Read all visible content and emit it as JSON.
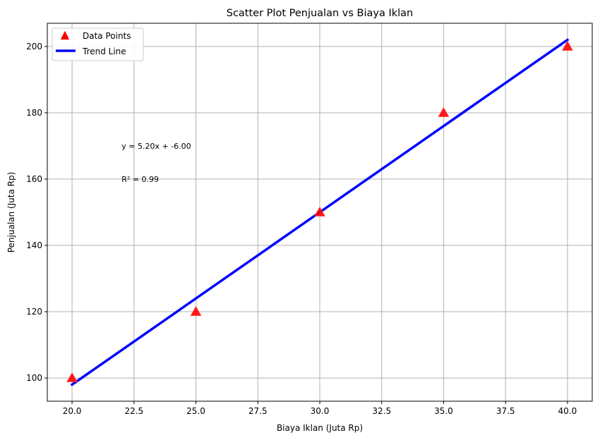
{
  "chart_data": {
    "type": "scatter",
    "title": "Scatter Plot Penjualan vs Biaya Iklan",
    "xlabel": "Biaya Iklan (Juta Rp)",
    "ylabel": "Penjualan (Juta Rp)",
    "xlim": [
      19.0,
      41.0
    ],
    "ylim": [
      93.0,
      207.0
    ],
    "x_ticks": [
      20.0,
      22.5,
      25.0,
      27.5,
      30.0,
      32.5,
      35.0,
      37.5,
      40.0
    ],
    "x_tick_labels": [
      "20.0",
      "22.5",
      "25.0",
      "27.5",
      "30.0",
      "32.5",
      "35.0",
      "37.5",
      "40.0"
    ],
    "y_ticks": [
      100,
      120,
      140,
      160,
      180,
      200
    ],
    "y_tick_labels": [
      "100",
      "120",
      "140",
      "160",
      "180",
      "200"
    ],
    "grid": true,
    "legend_position": "top-left",
    "series": [
      {
        "name": "Data Points",
        "kind": "scatter",
        "marker": "triangle",
        "color": "#ff0000",
        "points": [
          {
            "x": 20,
            "y": 100
          },
          {
            "x": 25,
            "y": 120
          },
          {
            "x": 30,
            "y": 150
          },
          {
            "x": 35,
            "y": 180
          },
          {
            "x": 40,
            "y": 200
          }
        ]
      },
      {
        "name": "Trend Line",
        "kind": "line",
        "color": "#0000ff",
        "points": [
          {
            "x": 20,
            "y": 98
          },
          {
            "x": 40,
            "y": 202
          }
        ]
      }
    ],
    "annotations": [
      {
        "text": "y = 5.20x + -6.00",
        "x": 22.0,
        "y": 170
      },
      {
        "text": "R² = 0.99",
        "x": 22.0,
        "y": 160
      }
    ]
  }
}
